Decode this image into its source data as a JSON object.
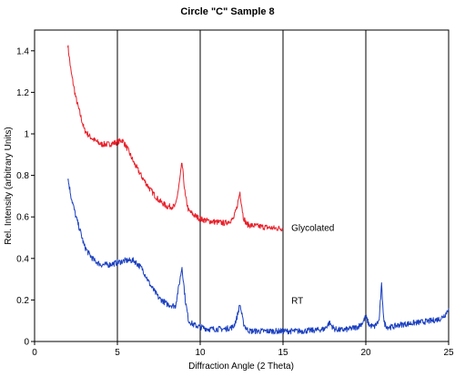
{
  "chart_data": {
    "type": "line",
    "title": "Circle \"C\" Sample 8",
    "xlabel": "Diffraction Angle (2 Theta)",
    "ylabel": "Rel. Intensity (arbitrary Units)",
    "xlim": [
      0,
      25
    ],
    "ylim": [
      0,
      1.5
    ],
    "x_ticks": [
      0,
      5,
      10,
      15,
      20,
      25
    ],
    "y_ticks": [
      0,
      0.2,
      0.4,
      0.6,
      0.8,
      1,
      1.2,
      1.4
    ],
    "x_tick_labels": [
      "0",
      "5",
      "10",
      "15",
      "20",
      "25"
    ],
    "y_tick_labels": [
      "0",
      "0.2",
      "0.4",
      "0.6",
      "0.8",
      "1",
      "1.2",
      "1.4"
    ],
    "vertical_gridlines": [
      5,
      10,
      15,
      20
    ],
    "grid": "vertical",
    "series": [
      {
        "name": "Glycolated",
        "color": "#e8202a",
        "x": [
          2.0,
          2.2,
          2.5,
          2.8,
          3.0,
          3.3,
          3.6,
          4.0,
          4.5,
          5.0,
          5.3,
          5.6,
          6.0,
          6.5,
          7.0,
          7.5,
          8.0,
          8.5,
          8.7,
          8.9,
          9.1,
          9.3,
          9.6,
          10.0,
          10.5,
          11.0,
          11.5,
          12.0,
          12.2,
          12.4,
          12.6,
          12.8,
          13.0,
          13.5,
          14.0,
          14.5,
          15.0
        ],
        "y": [
          1.43,
          1.3,
          1.17,
          1.08,
          1.02,
          0.99,
          0.97,
          0.95,
          0.95,
          0.96,
          0.97,
          0.93,
          0.86,
          0.79,
          0.73,
          0.68,
          0.65,
          0.65,
          0.74,
          0.86,
          0.7,
          0.63,
          0.61,
          0.59,
          0.58,
          0.575,
          0.57,
          0.59,
          0.64,
          0.72,
          0.6,
          0.565,
          0.56,
          0.555,
          0.55,
          0.545,
          0.545
        ]
      },
      {
        "name": "RT",
        "color": "#1a3fc0",
        "x": [
          2.0,
          2.2,
          2.5,
          2.8,
          3.0,
          3.3,
          3.6,
          4.0,
          4.5,
          5.0,
          5.5,
          6.0,
          6.5,
          7.0,
          7.5,
          8.0,
          8.5,
          8.7,
          8.9,
          9.1,
          9.3,
          9.6,
          10.0,
          10.5,
          11.0,
          11.5,
          12.0,
          12.2,
          12.4,
          12.6,
          12.8,
          13.0,
          13.5,
          14.0,
          15.0,
          16.0,
          17.0,
          17.5,
          17.8,
          18.1,
          18.5,
          19.0,
          19.5,
          19.8,
          20.0,
          20.2,
          20.5,
          20.8,
          20.95,
          21.1,
          21.3,
          21.6,
          22.0,
          23.0,
          24.0,
          24.5,
          24.8,
          25.0
        ],
        "y": [
          0.79,
          0.7,
          0.6,
          0.52,
          0.46,
          0.42,
          0.39,
          0.37,
          0.37,
          0.38,
          0.39,
          0.39,
          0.35,
          0.27,
          0.21,
          0.18,
          0.17,
          0.26,
          0.36,
          0.2,
          0.1,
          0.08,
          0.07,
          0.06,
          0.06,
          0.06,
          0.07,
          0.11,
          0.18,
          0.09,
          0.06,
          0.05,
          0.05,
          0.05,
          0.05,
          0.05,
          0.055,
          0.06,
          0.09,
          0.06,
          0.055,
          0.06,
          0.07,
          0.09,
          0.12,
          0.08,
          0.07,
          0.1,
          0.27,
          0.09,
          0.07,
          0.07,
          0.08,
          0.09,
          0.1,
          0.11,
          0.13,
          0.16
        ]
      }
    ],
    "annotations": [
      {
        "text": "Glycolated",
        "x": 15.5,
        "y": 0.55
      },
      {
        "text": "RT",
        "x": 15.5,
        "y": 0.2
      }
    ]
  }
}
